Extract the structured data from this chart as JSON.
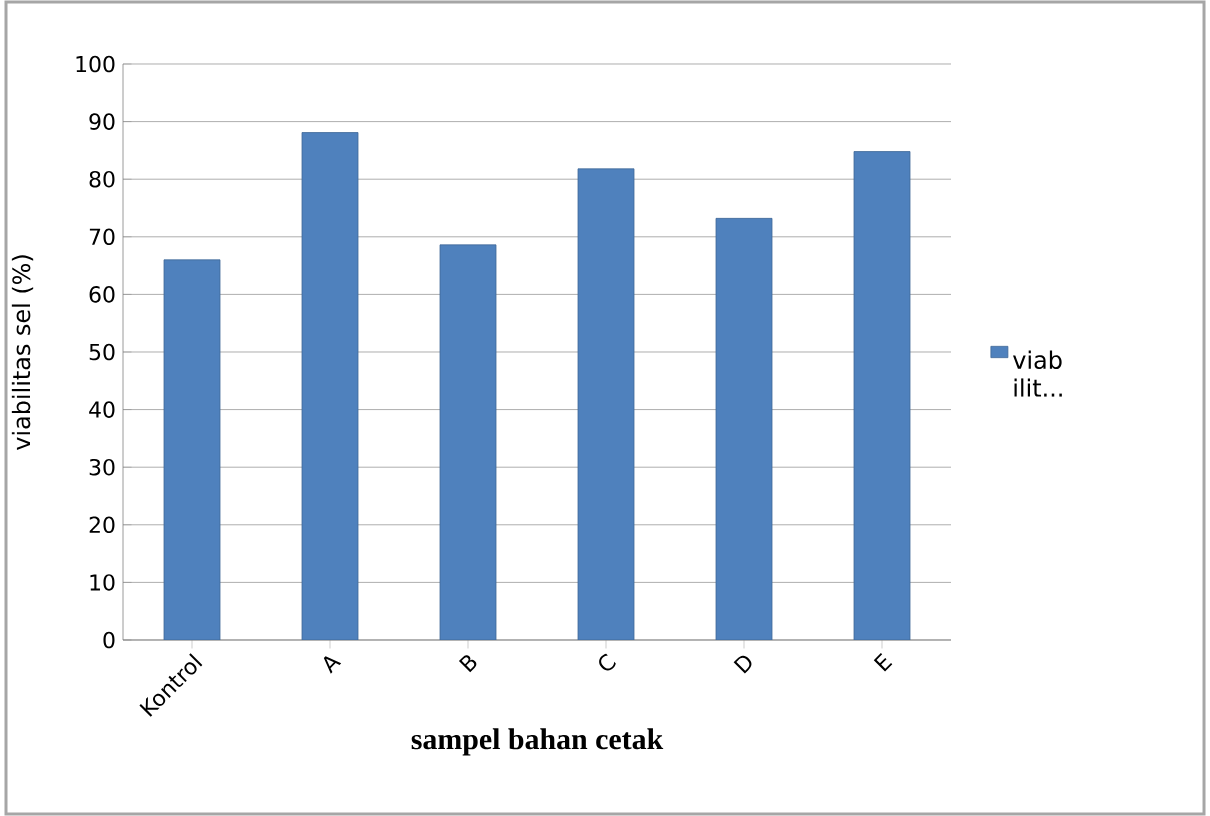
{
  "chart_data": {
    "type": "bar",
    "xlabel": "sampel bahan cetak",
    "ylabel": "viabilitas sel (%)",
    "categories": [
      "Kontrol",
      "A",
      "B",
      "C",
      "D",
      "E"
    ],
    "series": [
      {
        "name": "viab ilit...",
        "color": "#4f81bd",
        "values": [
          66,
          88.1,
          68.6,
          81.8,
          73.2,
          84.8
        ]
      }
    ],
    "ylim": [
      0,
      100
    ],
    "yticks": [
      0,
      10,
      20,
      30,
      40,
      50,
      60,
      70,
      80,
      90,
      100
    ],
    "grid": "y",
    "legend": "right"
  }
}
